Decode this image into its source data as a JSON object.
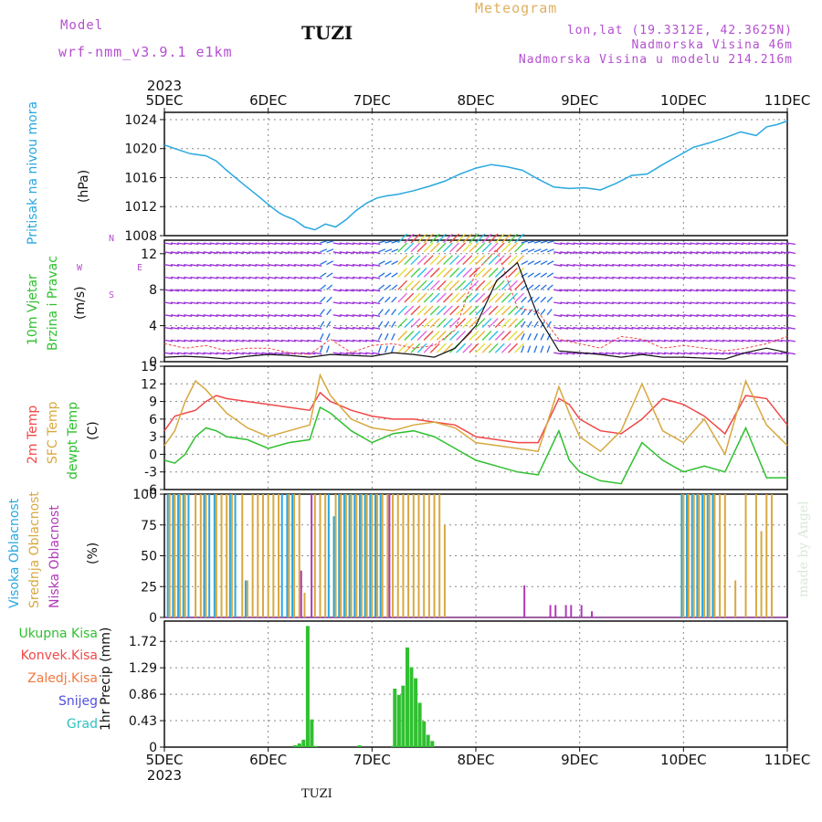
{
  "header": {
    "model_label": "Model",
    "model_name": "wrf-nmm_v3.9.1 e1km",
    "station": "TUZI",
    "meteogram": "Meteogram",
    "lonlat": "lon,lat (19.3312E, 42.3625N)",
    "altitude": "Nadmorska Visina 46m",
    "model_altitude": "Nadmorska Visina u modelu 214.216m",
    "year": "2023",
    "footer_station": "TUZI",
    "credit": "made by Angel"
  },
  "colors": {
    "pressure": "#29a8e0",
    "temp2m": "#f04848",
    "sfc_temp": "#d8a840",
    "dewpt": "#30c030",
    "high_cloud": "#29a8e0",
    "mid_cloud": "#d8a840",
    "low_cloud": "#b03ab8",
    "precip": "#30c030",
    "wind_purple": "#9b30d9",
    "wind_blue": "#2070e0"
  },
  "axes": {
    "dates": [
      "5DEC",
      "6DEC",
      "7DEC",
      "8DEC",
      "9DEC",
      "10DEC",
      "11DEC"
    ]
  },
  "chart_data": [
    {
      "type": "line",
      "panel": "pressure",
      "ylabel": [
        "Pritisak na nivou mora",
        "(hPa)"
      ],
      "yticks": [
        1008,
        1012,
        1016,
        1020,
        1024
      ],
      "ylim": [
        1008,
        1025
      ],
      "x": [
        0,
        0.1,
        0.25,
        0.4,
        0.5,
        0.6,
        0.75,
        0.9,
        1.0,
        1.1,
        1.15,
        1.25,
        1.35,
        1.45,
        1.55,
        1.65,
        1.75,
        1.85,
        1.95,
        2.05,
        2.15,
        2.25,
        2.4,
        2.55,
        2.7,
        2.85,
        3.0,
        3.15,
        3.3,
        3.45,
        3.6,
        3.75,
        3.9,
        4.05,
        4.2,
        4.35,
        4.5,
        4.65,
        4.8,
        4.95,
        5.1,
        5.25,
        5.4,
        5.55,
        5.7,
        5.8,
        5.9,
        6.0
      ],
      "series": [
        {
          "name": "pressure",
          "values": [
            1020.5,
            1020,
            1019.3,
            1019,
            1018.3,
            1017,
            1015.2,
            1013.5,
            1012.3,
            1011.2,
            1010.8,
            1010.2,
            1009.2,
            1008.8,
            1009.6,
            1009.2,
            1010.2,
            1011.5,
            1012.5,
            1013.2,
            1013.5,
            1013.7,
            1014.2,
            1014.8,
            1015.5,
            1016.5,
            1017.3,
            1017.8,
            1017.5,
            1017,
            1015.8,
            1014.7,
            1014.5,
            1014.6,
            1014.3,
            1015.2,
            1016.3,
            1016.5,
            1017.8,
            1019,
            1020.2,
            1020.8,
            1021.5,
            1022.3,
            1021.8,
            1023,
            1023.3,
            1023.8
          ]
        }
      ]
    },
    {
      "type": "line",
      "panel": "wind",
      "ylabel": [
        "10m Vjetar",
        "Brzina i Pravac",
        "(m/s)"
      ],
      "compass": [
        "N",
        "W",
        "E",
        "S"
      ],
      "yticks": [
        0,
        4,
        8,
        12
      ],
      "ylim": [
        0,
        13.5
      ],
      "x": [
        0,
        0.2,
        0.4,
        0.6,
        0.8,
        1.0,
        1.2,
        1.4,
        1.6,
        1.8,
        2.0,
        2.2,
        2.4,
        2.6,
        2.8,
        3.0,
        3.2,
        3.4,
        3.6,
        3.8,
        4.0,
        4.2,
        4.4,
        4.6,
        4.8,
        5.0,
        5.2,
        5.4,
        5.6,
        5.8,
        6.0
      ],
      "series": [
        {
          "name": "gust",
          "values": [
            2,
            1.5,
            1.8,
            1.2,
            1.5,
            1.5,
            1.0,
            0.8,
            2.5,
            1.0,
            1.8,
            2.0,
            1.5,
            1.8,
            3.5,
            10,
            12.5,
            6,
            5.5,
            2.5,
            2.0,
            1.5,
            2.8,
            2.5,
            1.5,
            1.8,
            1.5,
            1.2,
            1.5,
            2.0,
            2.8
          ]
        },
        {
          "name": "speed",
          "values": [
            0.5,
            0.6,
            0.5,
            0.3,
            0.6,
            0.8,
            0.7,
            0.5,
            0.8,
            0.7,
            0.6,
            1.0,
            0.8,
            0.5,
            1.5,
            4,
            9,
            11,
            5,
            1.2,
            1.0,
            0.8,
            0.5,
            0.8,
            0.5,
            0.5,
            0.4,
            0.3,
            1.0,
            1.5,
            1.0
          ]
        }
      ]
    },
    {
      "type": "line",
      "panel": "temperature",
      "ylabel": [
        "2m Temp",
        "SFC Temp",
        "dewpt Temp",
        "(C)"
      ],
      "yticks": [
        -6,
        -3,
        0,
        3,
        6,
        9,
        12,
        15
      ],
      "ylim": [
        -6,
        15
      ],
      "x": [
        0,
        0.1,
        0.2,
        0.3,
        0.4,
        0.5,
        0.6,
        0.8,
        1.0,
        1.2,
        1.4,
        1.5,
        1.6,
        1.8,
        2.0,
        2.2,
        2.4,
        2.6,
        2.8,
        3.0,
        3.2,
        3.4,
        3.6,
        3.8,
        3.9,
        4.0,
        4.2,
        4.4,
        4.6,
        4.8,
        5.0,
        5.2,
        5.4,
        5.6,
        5.8,
        6.0
      ],
      "series": [
        {
          "name": "2m",
          "values": [
            4,
            6.5,
            7,
            7.5,
            9,
            10,
            9.5,
            9,
            8.5,
            8,
            7.5,
            10.5,
            9,
            7.5,
            6.5,
            6,
            6,
            5.5,
            5,
            3,
            2.5,
            2,
            2,
            9.5,
            8.5,
            6,
            4,
            3.5,
            6,
            9.5,
            8.5,
            6.5,
            3.5,
            10,
            9.5,
            5
          ]
        },
        {
          "name": "sfc",
          "values": [
            1.5,
            4,
            9,
            12.5,
            11,
            9,
            7,
            4.5,
            3,
            4,
            5,
            13.5,
            10,
            6,
            4.5,
            4,
            5,
            5.5,
            4.5,
            2,
            1.5,
            1,
            0.5,
            11.5,
            7,
            3,
            0.5,
            4,
            12,
            4,
            2,
            6,
            0,
            12.5,
            5,
            1.5
          ]
        },
        {
          "name": "dewpt",
          "values": [
            -1,
            -1.5,
            0,
            3,
            4.5,
            4,
            3,
            2.5,
            1,
            2,
            2.5,
            8,
            7,
            4,
            2,
            3.5,
            4,
            3,
            1,
            -1,
            -2,
            -3,
            -3.5,
            4,
            -1,
            -3,
            -4.5,
            -5,
            2,
            -1,
            -3,
            -2,
            -3,
            4.5,
            -4,
            -4
          ]
        }
      ]
    },
    {
      "type": "bar",
      "panel": "clouds",
      "ylabel": [
        "Visoka Oblacnost",
        "Srednja Oblacnost",
        "Niska Oblacnost",
        "(%)"
      ],
      "yticks": [
        0,
        25,
        50,
        75,
        100
      ],
      "ylim": [
        0,
        100
      ],
      "x": [
        0.05,
        0.1,
        0.15,
        0.2,
        0.25,
        0.3,
        0.35,
        0.4,
        0.45,
        0.5,
        0.55,
        0.6,
        0.65,
        0.7,
        0.75,
        0.8,
        0.85,
        0.9,
        0.95,
        1.0,
        1.05,
        1.1,
        1.15,
        1.2,
        1.25,
        1.3,
        1.35,
        1.4,
        1.45,
        1.5,
        1.55,
        1.6,
        1.65,
        1.7,
        1.75,
        1.8,
        1.85,
        1.9,
        1.95,
        2.0,
        2.05,
        2.1,
        2.15,
        2.2,
        2.25,
        2.3,
        2.35,
        2.4,
        2.45,
        2.5,
        2.55,
        2.6,
        2.65,
        2.7,
        3.45,
        3.7,
        3.75,
        3.85,
        3.9,
        4.0,
        4.1,
        5.0,
        5.05,
        5.1,
        5.15,
        5.2,
        5.25,
        5.3,
        5.35,
        5.4,
        5.5,
        5.6,
        5.7,
        5.75,
        5.8,
        5.85
      ],
      "series": [
        {
          "name": "high",
          "values": [
            100,
            100,
            100,
            100,
            100,
            0,
            0,
            100,
            100,
            100,
            0,
            0,
            100,
            100,
            0,
            30,
            0,
            0,
            0,
            0,
            0,
            0,
            100,
            100,
            100,
            0,
            0,
            0,
            0,
            0,
            0,
            100,
            82,
            100,
            100,
            100,
            100,
            100,
            100,
            100,
            100,
            100,
            0,
            0,
            0,
            0,
            0,
            0,
            0,
            0,
            0,
            0,
            0,
            0,
            0,
            0,
            0,
            0,
            0,
            0,
            0,
            100,
            100,
            100,
            100,
            100,
            100,
            100,
            0,
            0,
            0,
            0,
            0,
            0,
            0,
            0
          ]
        },
        {
          "name": "mid",
          "values": [
            100,
            100,
            100,
            100,
            0,
            100,
            100,
            100,
            0,
            100,
            100,
            100,
            100,
            0,
            100,
            30,
            100,
            100,
            100,
            100,
            100,
            100,
            0,
            100,
            100,
            100,
            20,
            0,
            100,
            100,
            100,
            0,
            100,
            100,
            100,
            100,
            100,
            100,
            100,
            100,
            100,
            100,
            100,
            100,
            100,
            100,
            100,
            100,
            100,
            100,
            100,
            100,
            100,
            75,
            0,
            0,
            0,
            0,
            0,
            0,
            0,
            100,
            100,
            100,
            100,
            100,
            100,
            100,
            100,
            100,
            30,
            100,
            100,
            70,
            100,
            100
          ]
        },
        {
          "name": "low",
          "values": [
            0,
            0,
            0,
            0,
            0,
            0,
            0,
            0,
            0,
            0,
            0,
            0,
            0,
            0,
            0,
            0,
            0,
            0,
            0,
            0,
            0,
            0,
            0,
            0,
            0,
            38,
            0,
            100,
            0,
            0,
            0,
            0,
            0,
            0,
            0,
            0,
            0,
            0,
            0,
            0,
            0,
            0,
            100,
            0,
            0,
            0,
            0,
            0,
            0,
            0,
            0,
            0,
            0,
            0,
            26,
            10,
            10,
            10,
            10,
            10,
            5,
            0,
            0,
            0,
            0,
            0,
            0,
            0,
            0,
            0,
            0,
            0,
            0,
            0,
            0,
            0
          ]
        }
      ]
    },
    {
      "type": "bar",
      "panel": "precipitation",
      "ylabel": [
        "1hr Precip (mm)"
      ],
      "legend": [
        "Ukupna Kisa",
        "Konvek.Kisa",
        "Zaledj.Kisa",
        "Snijeg",
        "Grad"
      ],
      "legend_colors": [
        "#30c030",
        "#f04848",
        "#f07840",
        "#5050e0",
        "#30c0c0"
      ],
      "yticks": [
        0,
        0.43,
        0.86,
        1.29,
        1.72
      ],
      "ylim": [
        0,
        2.05
      ],
      "x": [
        1.26,
        1.3,
        1.34,
        1.38,
        1.42,
        1.46,
        1.88,
        2.2,
        2.22,
        2.26,
        2.3,
        2.34,
        2.38,
        2.42,
        2.46,
        2.5,
        2.54,
        2.58
      ],
      "series": [
        {
          "name": "total",
          "values": [
            0.03,
            0.06,
            0.12,
            1.97,
            0.45,
            0.02,
            0.03,
            0.02,
            0.95,
            0.85,
            1.0,
            1.62,
            1.3,
            1.12,
            0.72,
            0.42,
            0.2,
            0.1
          ]
        }
      ]
    }
  ]
}
